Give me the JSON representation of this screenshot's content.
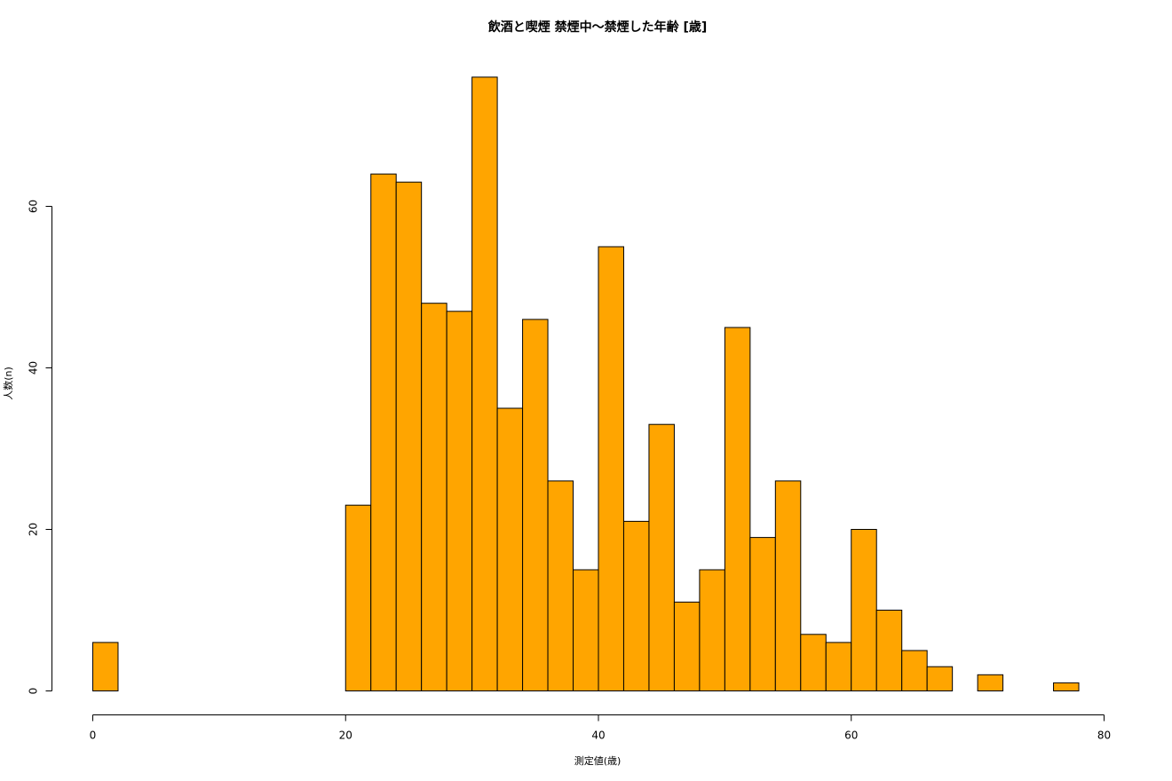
{
  "chart_data": {
    "type": "bar",
    "title": "飲酒と喫煙 禁煙中〜禁煙した年齢 [歳]",
    "xlabel": "測定値(歳)",
    "ylabel": "人数(n)",
    "xlim": [
      0,
      80
    ],
    "ylim": [
      0,
      76
    ],
    "x_ticks": [
      "0",
      "20",
      "40",
      "60",
      "80"
    ],
    "y_ticks": [
      "0",
      "20",
      "40",
      "60"
    ],
    "bin_width": 2,
    "bin_starts": [
      0,
      2,
      4,
      6,
      8,
      10,
      12,
      14,
      16,
      18,
      20,
      22,
      24,
      26,
      28,
      30,
      32,
      34,
      36,
      38,
      40,
      42,
      44,
      46,
      48,
      50,
      52,
      54,
      56,
      58,
      60,
      62,
      64,
      66,
      68,
      70,
      72,
      74,
      76
    ],
    "values": [
      6,
      0,
      0,
      0,
      0,
      0,
      0,
      0,
      0,
      0,
      23,
      64,
      63,
      48,
      47,
      76,
      35,
      46,
      26,
      15,
      55,
      21,
      33,
      11,
      15,
      45,
      19,
      26,
      7,
      6,
      20,
      10,
      5,
      3,
      0,
      2,
      0,
      0,
      1
    ],
    "bar_color": "#FFA500",
    "grid": false,
    "legend": false
  }
}
